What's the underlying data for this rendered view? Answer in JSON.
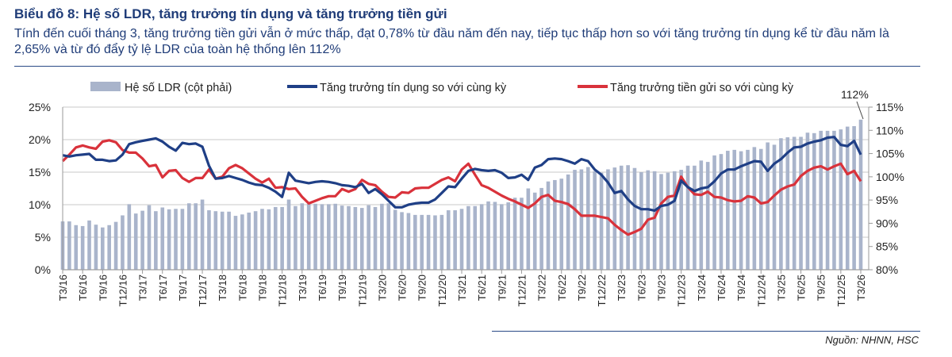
{
  "header": {
    "title": "Biểu đồ 8: Hệ số LDR, tăng trưởng tín dụng và tăng trưởng tiền gửi",
    "subtitle": "Tính đến cuối tháng 3, tăng trưởng tiền gửi vẫn ở mức thấp, đạt 0,78% từ đầu năm đến nay, tiếp tục thấp hơn so với tăng trưởng tín dụng kể từ đầu năm là 2,65% và từ đó đẩy tỷ lệ LDR của toàn hệ thống lên 112%"
  },
  "source": "Nguồn: NHNN, HSC",
  "chart_data": {
    "type": "bar+line",
    "title": "",
    "x_tick_labels": [
      "T3/16",
      "T6/16",
      "T9/16",
      "T12/16",
      "T3/17",
      "T6/17",
      "T9/17",
      "T12/17",
      "T3/18",
      "T6/18",
      "T9/18",
      "T12/18",
      "T3/19",
      "T6/19",
      "T9/19",
      "T12/19",
      "T3/20",
      "T6/20",
      "T9/20",
      "T12/20",
      "T3/21",
      "T6/21",
      "T9/21",
      "T12/21",
      "T3/22",
      "T6/22",
      "T9/22",
      "T12/22",
      "T3/23",
      "T6/23",
      "T9/23",
      "T12/23",
      "T3/24",
      "T6/24",
      "T9/24",
      "T12/24",
      "T3/25",
      "T6/25",
      "T9/25",
      "T12/25",
      "T3/26"
    ],
    "x_frequency": "monthly",
    "y_left": {
      "range": [
        0,
        25
      ],
      "ticks": [
        "0%",
        "5%",
        "10%",
        "15%",
        "20%",
        "25%"
      ]
    },
    "y_right": {
      "range": [
        80,
        115
      ],
      "ticks": [
        "80%",
        "85%",
        "90%",
        "95%",
        "100%",
        "105%",
        "110%",
        "115%"
      ]
    },
    "grid": true,
    "legend_position": "top",
    "annotation": "112%",
    "series": [
      {
        "name": "Hệ số LDR (cột phải)",
        "kind": "bar",
        "axis": "right",
        "color": "#a9b4cb",
        "values": [
          90.4,
          90.4,
          89.6,
          89.4,
          90.6,
          89.7,
          89.1,
          89.6,
          90.3,
          91.7,
          94.1,
          92.1,
          92.7,
          93.9,
          92.6,
          93.4,
          93.0,
          93.1,
          93.1,
          94.3,
          94.3,
          95.1,
          92.8,
          92.6,
          92.5,
          92.5,
          91.6,
          91.9,
          92.3,
          92.6,
          93.1,
          93.0,
          93.5,
          93.5,
          95.1,
          93.7,
          94.3,
          94.2,
          94.2,
          94.1,
          94.1,
          94.2,
          93.8,
          93.7,
          93.5,
          93.3,
          93.9,
          93.5,
          94.2,
          94.3,
          92.9,
          92.4,
          92.2,
          91.8,
          91.8,
          91.8,
          91.7,
          91.8,
          92.8,
          92.8,
          93.1,
          93.7,
          93.7,
          94.1,
          94.7,
          94.6,
          94.1,
          94.5,
          95.5,
          95.5,
          97.5,
          96.6,
          97.6,
          99.0,
          99.3,
          99.6,
          100.5,
          101.5,
          101.6,
          102.1,
          101.2,
          100.9,
          101.6,
          102.0,
          102.4,
          102.5,
          101.9,
          101.0,
          101.4,
          101.2,
          100.6,
          100.9,
          101.2,
          101.5,
          102.4,
          102.4,
          103.5,
          103.2,
          104.6,
          104.9,
          105.6,
          105.8,
          105.5,
          105.8,
          106.4,
          106.0,
          107.4,
          106.9,
          108.3,
          108.5,
          108.6,
          108.6,
          109.5,
          109.4,
          109.9,
          109.9,
          109.9,
          110.2,
          110.8,
          110.9,
          112.3
        ]
      },
      {
        "name": "Tăng trưởng tín dụng so với cùng kỳ",
        "kind": "line",
        "axis": "left",
        "color": "#1f3f86",
        "values": [
          17.6,
          17.4,
          17.6,
          17.7,
          17.8,
          16.9,
          16.9,
          16.7,
          16.8,
          17.7,
          19.3,
          19.6,
          19.8,
          20.0,
          20.2,
          19.7,
          18.9,
          18.3,
          19.5,
          19.3,
          19.4,
          18.9,
          16.0,
          14.0,
          14.1,
          14.4,
          14.1,
          13.8,
          13.4,
          13.1,
          13.0,
          12.6,
          12.0,
          11.2,
          14.9,
          13.7,
          13.5,
          13.3,
          13.5,
          13.6,
          13.5,
          13.3,
          13.0,
          12.9,
          12.7,
          13.2,
          11.8,
          12.4,
          11.6,
          10.6,
          9.6,
          9.6,
          10.0,
          10.2,
          10.3,
          10.3,
          10.8,
          11.8,
          12.8,
          12.7,
          14.0,
          15.2,
          15.5,
          15.3,
          15.2,
          15.3,
          14.9,
          14.1,
          14.2,
          14.6,
          13.8,
          15.7,
          16.1,
          17.0,
          17.1,
          17.0,
          16.7,
          16.3,
          17.0,
          16.7,
          15.4,
          14.6,
          13.4,
          11.8,
          12.1,
          10.8,
          9.8,
          9.3,
          9.3,
          9.1,
          9.8,
          10.0,
          10.6,
          13.7,
          12.7,
          12.1,
          12.5,
          12.7,
          13.6,
          14.8,
          15.4,
          15.4,
          15.9,
          16.3,
          16.7,
          16.6,
          15.2,
          16.3,
          17.0,
          18.0,
          18.8,
          18.9,
          19.4,
          19.7,
          19.9,
          20.3,
          20.4,
          19.2,
          19.0,
          19.8,
          17.7
        ]
      },
      {
        "name": "Tăng trưởng tiền gửi so với cùng kỳ",
        "kind": "line",
        "axis": "left",
        "color": "#d9323b",
        "values": [
          16.7,
          17.7,
          18.8,
          19.1,
          18.8,
          18.6,
          19.7,
          19.9,
          19.6,
          18.4,
          18.0,
          18.0,
          17.1,
          15.9,
          16.1,
          14.2,
          15.2,
          15.3,
          14.1,
          13.5,
          14.1,
          14.1,
          15.4,
          14.0,
          14.3,
          15.6,
          16.1,
          15.6,
          14.8,
          14.0,
          13.4,
          14.0,
          12.6,
          12.7,
          12.4,
          12.5,
          11.2,
          10.2,
          10.6,
          11.0,
          11.3,
          11.3,
          12.4,
          12.0,
          12.4,
          13.8,
          13.2,
          13.0,
          12.0,
          11.2,
          11.1,
          11.9,
          11.8,
          12.5,
          12.6,
          12.6,
          13.2,
          13.8,
          14.2,
          13.6,
          15.4,
          16.3,
          14.6,
          13.0,
          12.6,
          12.0,
          11.4,
          10.9,
          10.5,
          10.0,
          9.5,
          10.2,
          11.2,
          11.5,
          10.6,
          10.4,
          10.1,
          9.3,
          8.3,
          8.3,
          8.3,
          8.1,
          7.9,
          6.9,
          6.1,
          5.4,
          5.8,
          6.3,
          7.7,
          8.0,
          10.2,
          11.2,
          11.4,
          14.3,
          12.7,
          11.6,
          11.5,
          12.0,
          11.2,
          11.1,
          10.7,
          10.5,
          10.6,
          11.3,
          11.1,
          10.2,
          10.4,
          11.4,
          12.3,
          12.8,
          13.1,
          14.4,
          15.2,
          15.7,
          15.9,
          15.4,
          15.9,
          16.3,
          14.7,
          15.2,
          13.6
        ]
      }
    ]
  }
}
